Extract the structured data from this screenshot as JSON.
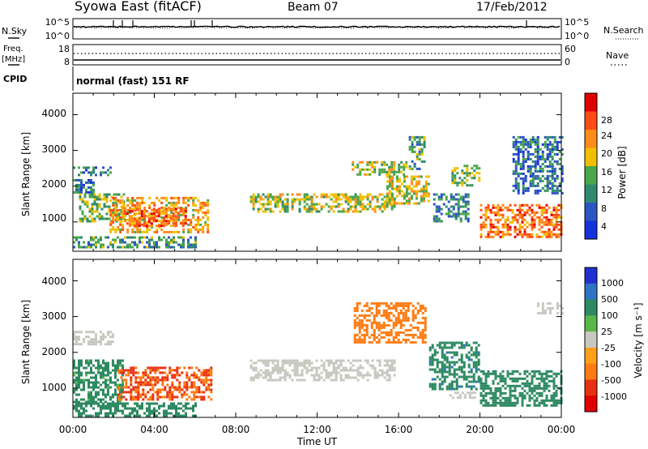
{
  "header": {
    "station": "Syowa East (fitACF)",
    "beam": "Beam 07",
    "date": "17/Feb/2012"
  },
  "noise_panel": {
    "left_label": "N.Sky",
    "right_label": "N.Search",
    "left_ticks": [
      "10^5",
      "10^0"
    ],
    "right_ticks": [
      "10^5",
      "10^0"
    ]
  },
  "freq_panel": {
    "left_label": "Freq.",
    "left_unit": "[MHz]",
    "right_label": "Nave",
    "left_ticks": [
      "18",
      "8"
    ],
    "right_ticks": [
      "60",
      "0"
    ]
  },
  "cpid": {
    "label": "CPID",
    "mode": "normal (fast) 151 RF"
  },
  "x_axis": {
    "label": "Time UT",
    "ticks": [
      "00:00",
      "04:00",
      "08:00",
      "12:00",
      "16:00",
      "20:00",
      "00:00"
    ],
    "range_hours": [
      0,
      24
    ]
  },
  "power_panel": {
    "ylabel": "Slant Range [km]",
    "yticks": [
      "1000",
      "2000",
      "3000",
      "4000"
    ],
    "yrange_km": [
      180,
      4600
    ],
    "colorbar_label": "Power [dB]",
    "colorbar_ticks": [
      "4",
      "8",
      "12",
      "16",
      "20",
      "24",
      "28"
    ]
  },
  "velocity_panel": {
    "ylabel": "Slant Range [km]",
    "yticks": [
      "1000",
      "2000",
      "3000",
      "4000"
    ],
    "yrange_km": [
      180,
      4600
    ],
    "colorbar_label": "Velocity [m s⁻¹]",
    "colorbar_ticks": [
      "1000",
      "500",
      "100",
      "25",
      "-25",
      "-100",
      "-500",
      "-1000"
    ]
  },
  "colors": {
    "power_scale": [
      "#1432dc",
      "#2c55c2",
      "#2e8a6e",
      "#4aa64a",
      "#f0c000",
      "#ff8c1a",
      "#ff4d14",
      "#e00000"
    ],
    "velocity_scale": [
      "#2030d0",
      "#2f73c4",
      "#2e8a62",
      "#5ab84a",
      "#c8c8c0",
      "#ff9e18",
      "#ff7a10",
      "#e83010",
      "#e00000"
    ]
  },
  "chart_data": [
    {
      "type": "heatmap",
      "panel": "power",
      "title": "",
      "xlabel": "Time UT",
      "ylabel": "Slant Range [km]",
      "x_range_hours": [
        0,
        24
      ],
      "y_range_km": [
        180,
        4600
      ],
      "z_unit": "dB",
      "z_range": [
        0,
        30
      ],
      "echo_regions": [
        {
          "t_start": 0.0,
          "t_end": 1.8,
          "r_start": 2300,
          "r_end": 2550,
          "value": 8
        },
        {
          "t_start": 0.0,
          "t_end": 1.0,
          "r_start": 1800,
          "r_end": 2200,
          "value": 8
        },
        {
          "t_start": 0.3,
          "t_end": 2.5,
          "r_start": 1000,
          "r_end": 1800,
          "value": 14
        },
        {
          "t_start": 1.8,
          "t_end": 6.6,
          "r_start": 700,
          "r_end": 1700,
          "value": 20
        },
        {
          "t_start": 2.5,
          "t_end": 5.5,
          "r_start": 900,
          "r_end": 1400,
          "value": 24
        },
        {
          "t_start": 0.0,
          "t_end": 6.0,
          "r_start": 300,
          "r_end": 600,
          "value": 12
        },
        {
          "t_start": 8.7,
          "t_end": 15.8,
          "r_start": 1300,
          "r_end": 1800,
          "value": 16
        },
        {
          "t_start": 13.7,
          "t_end": 16.4,
          "r_start": 2300,
          "r_end": 2700,
          "value": 16
        },
        {
          "t_start": 15.4,
          "t_end": 17.5,
          "r_start": 1500,
          "r_end": 2300,
          "value": 18
        },
        {
          "t_start": 16.5,
          "t_end": 17.3,
          "r_start": 2500,
          "r_end": 3400,
          "value": 12
        },
        {
          "t_start": 17.7,
          "t_end": 19.4,
          "r_start": 1000,
          "r_end": 1800,
          "value": 10
        },
        {
          "t_start": 18.6,
          "t_end": 20.0,
          "r_start": 2000,
          "r_end": 2600,
          "value": 14
        },
        {
          "t_start": 20.0,
          "t_end": 24.0,
          "r_start": 600,
          "r_end": 1500,
          "value": 24
        },
        {
          "t_start": 21.6,
          "t_end": 24.0,
          "r_start": 1800,
          "r_end": 3400,
          "value": 8
        }
      ]
    },
    {
      "type": "heatmap",
      "panel": "velocity",
      "title": "",
      "xlabel": "Time UT",
      "ylabel": "Slant Range [km]",
      "x_range_hours": [
        0,
        24
      ],
      "y_range_km": [
        180,
        4600
      ],
      "z_unit": "m s⁻¹",
      "z_range": [
        -1000,
        1000
      ],
      "echo_regions": [
        {
          "t_start": 0.0,
          "t_end": 2.0,
          "r_start": 2200,
          "r_end": 2600,
          "value": 0
        },
        {
          "t_start": 0.0,
          "t_end": 2.5,
          "r_start": 600,
          "r_end": 1800,
          "value": 120
        },
        {
          "t_start": 2.2,
          "t_end": 6.8,
          "r_start": 700,
          "r_end": 1600,
          "value": -300
        },
        {
          "t_start": 0.0,
          "t_end": 6.0,
          "r_start": 250,
          "r_end": 600,
          "value": 150
        },
        {
          "t_start": 8.7,
          "t_end": 15.8,
          "r_start": 1200,
          "r_end": 1800,
          "value": 0
        },
        {
          "t_start": 13.8,
          "t_end": 17.3,
          "r_start": 2300,
          "r_end": 3400,
          "value": -150
        },
        {
          "t_start": 17.5,
          "t_end": 20.0,
          "r_start": 1000,
          "r_end": 2300,
          "value": 200
        },
        {
          "t_start": 18.5,
          "t_end": 19.8,
          "r_start": 700,
          "r_end": 900,
          "value": 0
        },
        {
          "t_start": 20.0,
          "t_end": 24.0,
          "r_start": 500,
          "r_end": 1500,
          "value": 150
        },
        {
          "t_start": 22.8,
          "t_end": 24.0,
          "r_start": 3100,
          "r_end": 3400,
          "value": 0
        }
      ]
    }
  ]
}
